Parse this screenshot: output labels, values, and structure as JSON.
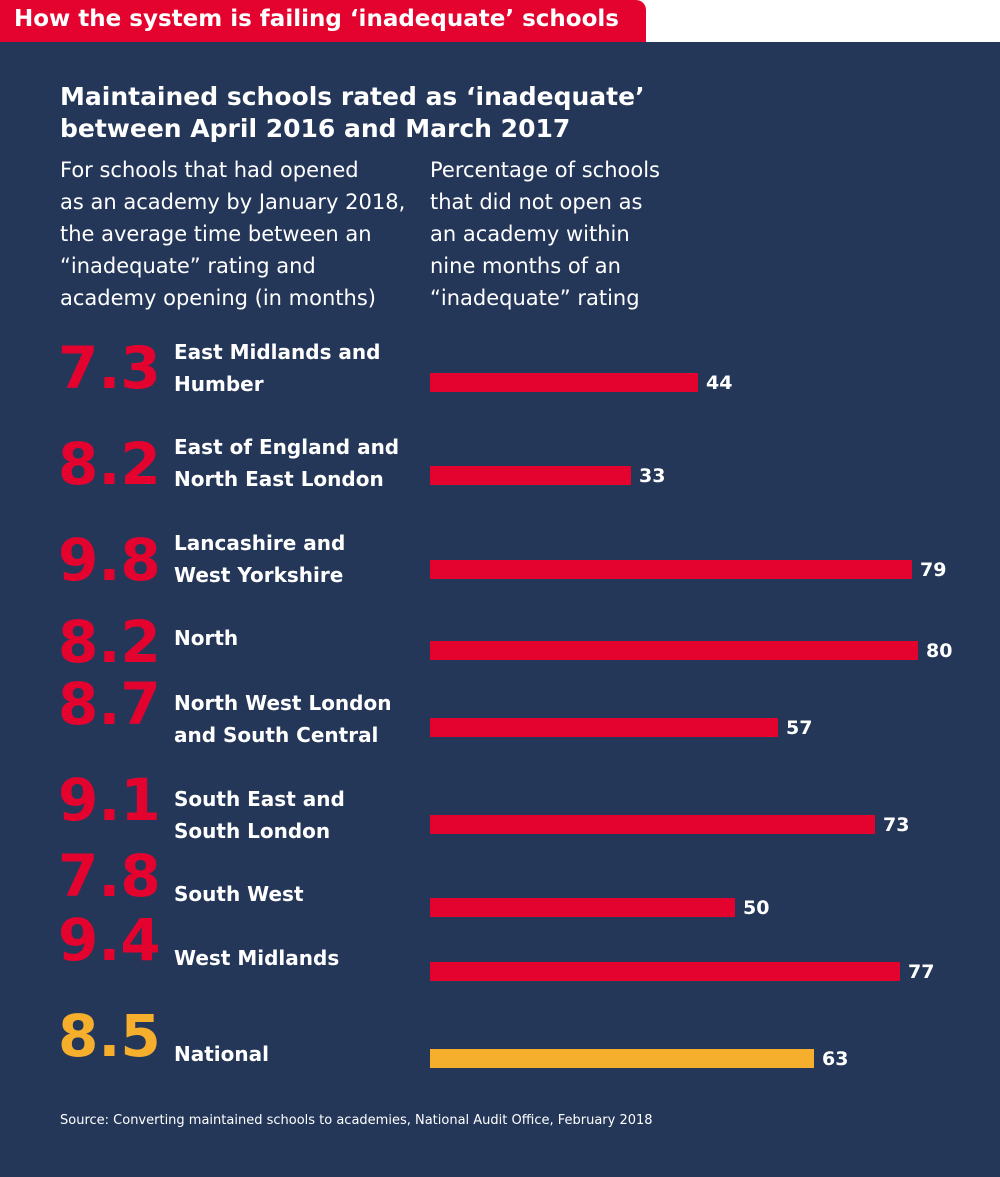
{
  "banner": "How the system is failing ‘inadequate’ schools",
  "title_line1": "Maintained schools rated as ‘inadequate’",
  "title_line2": "between April 2016 and March 2017",
  "left_desc": [
    "For schools that had opened",
    "as an academy by January 2018,",
    "the average time between an",
    "“inadequate” rating and",
    "academy opening (in months)"
  ],
  "right_desc": [
    "Percentage of schools",
    "that did not open as",
    "an academy within",
    "nine months of an",
    "“inadequate” rating"
  ],
  "source": "Source: Converting maintained schools to academies, National Audit Office, February 2018",
  "colors": {
    "bar": "#e4032e",
    "national_bar": "#f6ae2d",
    "background": "#243759"
  },
  "chart_data": {
    "type": "bar",
    "orientation": "horizontal",
    "title": "Maintained schools rated as ‘inadequate’ between April 2016 and March 2017",
    "xlabel": "Percentage of schools that did not open as an academy within nine months of an “inadequate” rating",
    "xlim": [
      0,
      80
    ],
    "rows": [
      {
        "months": "7.3",
        "region": [
          "East Midlands and",
          "Humber"
        ],
        "percent": 44
      },
      {
        "months": "8.2",
        "region": [
          "East of England and",
          "North East London"
        ],
        "percent": 33
      },
      {
        "months": "9.8",
        "region": [
          "Lancashire and",
          "West Yorkshire"
        ],
        "percent": 79
      },
      {
        "months": "8.2",
        "region": [
          "North"
        ],
        "percent": 80
      },
      {
        "months": "8.7",
        "region": [
          "North West London",
          "and South Central"
        ],
        "percent": 57
      },
      {
        "months": "9.1",
        "region": [
          "South East and",
          "South London"
        ],
        "percent": 73
      },
      {
        "months": "7.8",
        "region": [
          "South West"
        ],
        "percent": 50
      },
      {
        "months": "9.4",
        "region": [
          "West Midlands"
        ],
        "percent": 77
      },
      {
        "months": "8.5",
        "region": [
          "National"
        ],
        "percent": 63,
        "national": true
      }
    ]
  }
}
